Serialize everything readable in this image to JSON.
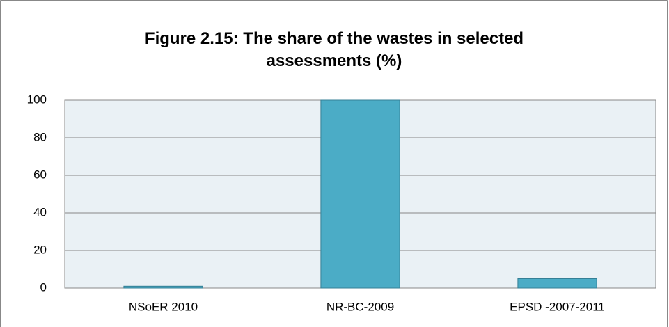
{
  "chart_data": {
    "type": "bar",
    "title": "Figure 2.15: The share of the wastes in selected assessments (%)",
    "categories": [
      "NSoER 2010",
      "NR-BC-2009",
      "EPSD -2007-2011"
    ],
    "values": [
      1,
      100,
      5
    ],
    "color": "#4bacc6",
    "ylim": [
      0,
      100
    ],
    "yticks": [
      0,
      20,
      40,
      60,
      80,
      100
    ],
    "grid": true
  }
}
